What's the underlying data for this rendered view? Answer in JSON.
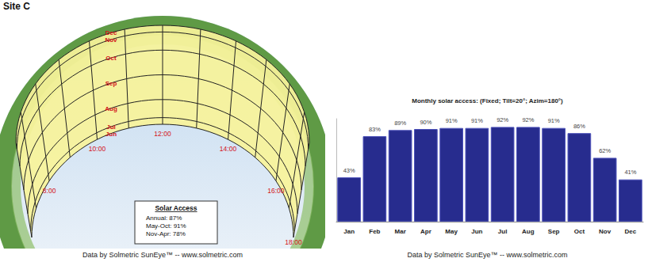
{
  "title": "Site C",
  "sun_path": {
    "month_labels": [
      "Dec",
      "Nov",
      "Oct",
      "Sep",
      "Aug",
      "Jul",
      "Jun"
    ],
    "hour_labels": [
      "8:00",
      "10:00",
      "12:00",
      "14:00",
      "16:00",
      "18:00"
    ],
    "summary": {
      "title": "Solar Access",
      "rows": [
        "Annual: 87%",
        "May-Oct: 91%",
        "Nov-Apr: 78%"
      ]
    },
    "credit": "Data by Solmetric SunEye™ -- www.solmetric.com"
  },
  "chart_data": {
    "type": "bar",
    "title": "Monthly solar access: (Fixed; Tilt=20°; Azim=180°)",
    "categories": [
      "Jan",
      "Feb",
      "Mar",
      "Apr",
      "May",
      "Jun",
      "Jul",
      "Aug",
      "Sep",
      "Oct",
      "Nov",
      "Dec"
    ],
    "values": [
      43,
      83,
      89,
      90,
      91,
      91,
      92,
      92,
      91,
      86,
      62,
      41
    ],
    "value_labels": [
      "43%",
      "83%",
      "89%",
      "90%",
      "91%",
      "91%",
      "92%",
      "92%",
      "91%",
      "86%",
      "62%",
      "41%"
    ],
    "data_labels": true,
    "color": "#272c8e",
    "ylim": [
      0,
      100
    ],
    "tick_labels": "x",
    "grid": false,
    "footnote": "Data by Solmetric SunEye™ -- www.solmetric.com"
  }
}
